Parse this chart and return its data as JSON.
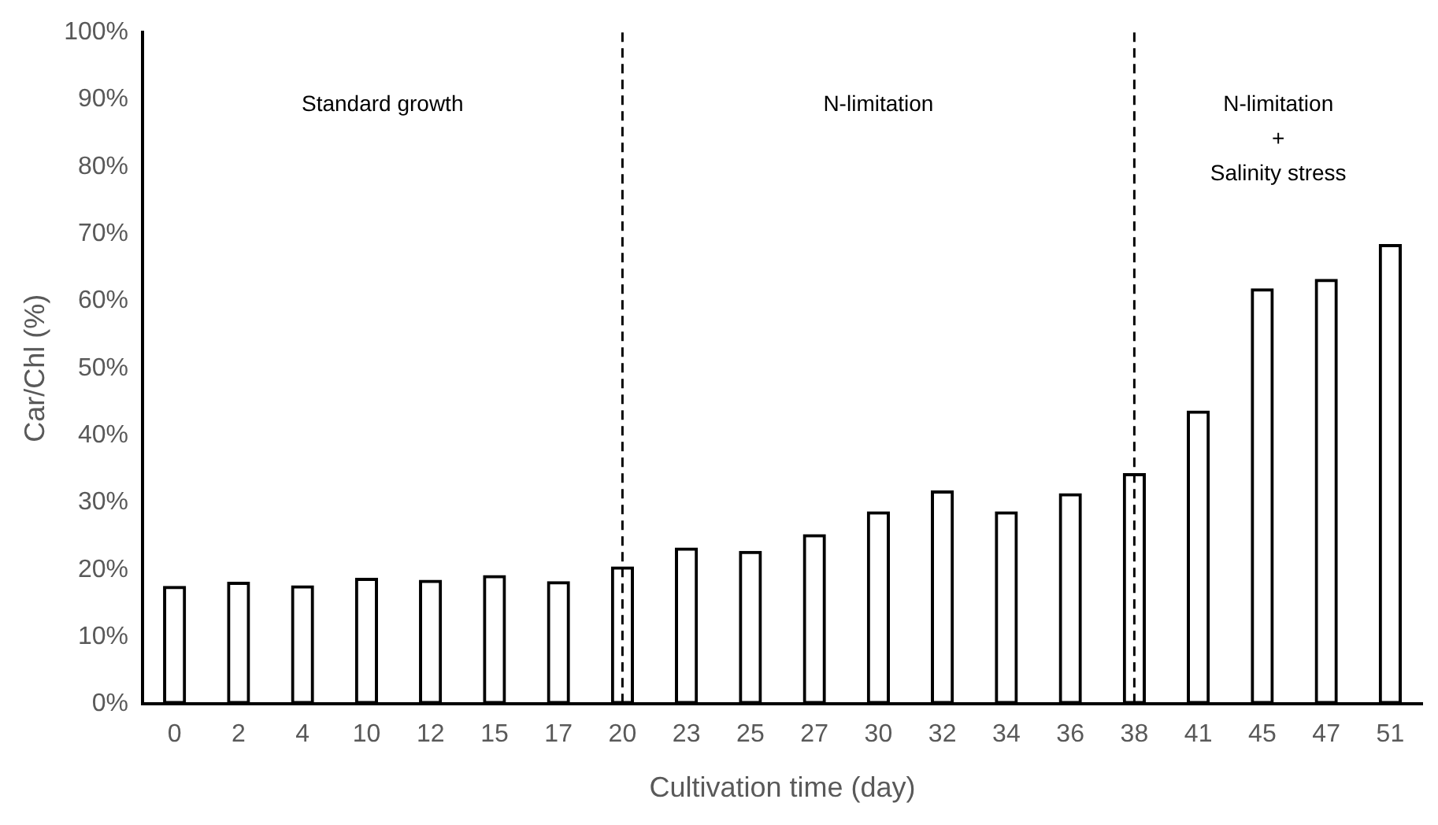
{
  "chart_data": {
    "type": "bar",
    "xlabel": "Cultivation time (day)",
    "ylabel": "Car/Chl (%)",
    "categories": [
      "0",
      "2",
      "4",
      "10",
      "12",
      "15",
      "17",
      "20",
      "23",
      "25",
      "27",
      "30",
      "32",
      "34",
      "36",
      "38",
      "41",
      "45",
      "47",
      "51"
    ],
    "series": [
      {
        "color": "#000000",
        "values": [
          17.6,
          18.2,
          17.7,
          18.8,
          18.5,
          19.2,
          18.3,
          20.5,
          23.3,
          22.8,
          25.3,
          28.7,
          31.8,
          28.7,
          31.4,
          34.4,
          43.7,
          61.9,
          63.3,
          68.5
        ]
      }
    ],
    "ylim": [
      0,
      100
    ],
    "yticks": [
      {
        "value": 0,
        "label": "0%"
      },
      {
        "value": 10,
        "label": "10%"
      },
      {
        "value": 20,
        "label": "20%"
      },
      {
        "value": 30,
        "label": "30%"
      },
      {
        "value": 40,
        "label": "40%"
      },
      {
        "value": 50,
        "label": "50%"
      },
      {
        "value": 60,
        "label": "60%"
      },
      {
        "value": 70,
        "label": "70%"
      },
      {
        "value": 80,
        "label": "80%"
      },
      {
        "value": 90,
        "label": "90%"
      },
      {
        "value": 100,
        "label": "100%"
      }
    ],
    "ref_lines": [
      {
        "axis": "x",
        "value": "20",
        "line_style": "dashed"
      },
      {
        "axis": "x",
        "value": "38",
        "line_style": "dashed"
      }
    ],
    "annotations": [
      "Standard growth",
      "N-limitation",
      "N-limitation\n+\nSalinity stress"
    ],
    "grid": false,
    "legend": false
  }
}
